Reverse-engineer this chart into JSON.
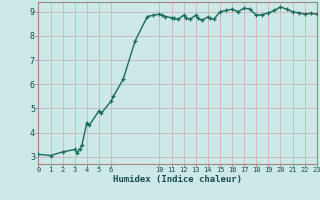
{
  "title": "",
  "xlabel": "Humidex (Indice chaleur)",
  "bg_color": "#cce8e8",
  "plot_bg_color": "#cce8e8",
  "line_color": "#1a6b5a",
  "marker_color": "#1a6b5a",
  "grid_color": "#c8b8b0",
  "spine_color": "#a08880",
  "x": [
    0,
    1,
    2,
    3,
    3.2,
    3.4,
    3.6,
    4,
    4.2,
    5,
    5.2,
    6,
    6.2,
    7,
    8,
    9,
    9.5,
    10,
    10.2,
    10.5,
    11,
    11.2,
    11.5,
    12,
    12.2,
    12.5,
    13,
    13.2,
    13.5,
    14,
    14.2,
    14.5,
    15,
    15.5,
    16,
    16.5,
    17,
    17.5,
    18,
    18.5,
    19,
    19.5,
    20,
    20.5,
    21,
    21.5,
    22,
    22.5,
    23
  ],
  "y": [
    3.1,
    3.05,
    3.2,
    3.3,
    3.15,
    3.3,
    3.5,
    4.4,
    4.3,
    4.9,
    4.8,
    5.3,
    5.5,
    6.2,
    7.8,
    8.8,
    8.85,
    8.9,
    8.85,
    8.8,
    8.75,
    8.72,
    8.68,
    8.85,
    8.75,
    8.68,
    8.85,
    8.72,
    8.65,
    8.78,
    8.72,
    8.68,
    9.0,
    9.05,
    9.1,
    9.0,
    9.15,
    9.1,
    8.85,
    8.88,
    8.95,
    9.05,
    9.2,
    9.1,
    9.0,
    8.95,
    8.9,
    8.93,
    8.9
  ],
  "xlim": [
    0,
    23
  ],
  "ylim": [
    2.7,
    9.4
  ],
  "xticks": [
    0,
    1,
    2,
    3,
    4,
    5,
    6,
    10,
    11,
    12,
    13,
    14,
    15,
    16,
    17,
    18,
    19,
    20,
    21,
    22,
    23
  ],
  "yticks": [
    3,
    4,
    5,
    6,
    7,
    8,
    9
  ],
  "font_color": "#1a4a4a",
  "linewidth": 1.0,
  "markersize": 3.5
}
